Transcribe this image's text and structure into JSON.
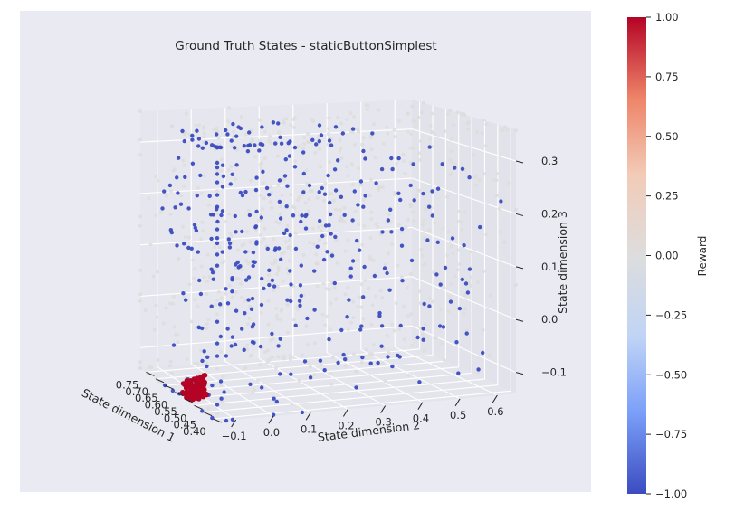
{
  "chart_data": {
    "type": "scatter",
    "projection": "3d",
    "title": "Ground Truth States - staticButtonSimplest",
    "xlabel": "State dimension 1",
    "ylabel": "State dimension 2",
    "zlabel": "State dimension 3",
    "x_ticks": [
      "0.40",
      "0.45",
      "0.50",
      "0.55",
      "0.60",
      "0.65",
      "0.70",
      "0.75"
    ],
    "y_ticks": [
      "−0.1",
      "0.0",
      "0.1",
      "0.2",
      "0.3",
      "0.4",
      "0.5",
      "0.6"
    ],
    "z_ticks": [
      "−0.1",
      "0.0",
      "0.1",
      "0.2",
      "0.3"
    ],
    "xlim": [
      0.38,
      0.78
    ],
    "ylim": [
      -0.15,
      0.65
    ],
    "zlim": [
      -0.14,
      0.36
    ],
    "colorbar": {
      "label": "Reward",
      "ticks": [
        "1.00",
        "0.75",
        "0.50",
        "0.25",
        "0.00",
        "−0.25",
        "−0.50",
        "−0.75",
        "−1.00"
      ],
      "range": [
        -1.0,
        1.0
      ],
      "colormap": "coolwarm",
      "colors": [
        "#3b4cc0",
        "#7b9ff9",
        "#c0d4f5",
        "#dddddd",
        "#f2cbb7",
        "#ee8468",
        "#b40426"
      ]
    },
    "series": [
      {
        "name": "",
        "reward": 0,
        "color": "#dddddd",
        "description": "dense grid of neutral-reward states",
        "points": [
          [
            0.4,
            0.0,
            0.3
          ],
          [
            0.45,
            0.1,
            0.25
          ],
          [
            0.5,
            0.2,
            0.2
          ],
          [
            0.55,
            0.3,
            0.15
          ],
          [
            0.6,
            0.4,
            0.1
          ],
          [
            0.65,
            0.5,
            0.05
          ],
          [
            0.7,
            0.0,
            0.0
          ],
          [
            0.75,
            0.2,
            -0.05
          ],
          [
            0.45,
            0.4,
            0.28
          ],
          [
            0.55,
            0.5,
            0.22
          ],
          [
            0.65,
            0.1,
            0.18
          ],
          [
            0.5,
            0.0,
            0.12
          ]
        ]
      },
      {
        "name": "",
        "reward": -1,
        "color": "#3b4cc0",
        "description": "negative-reward states",
        "points": [
          [
            0.4,
            -0.1,
            0.32
          ],
          [
            0.42,
            -0.1,
            0.25
          ],
          [
            0.44,
            -0.1,
            0.18
          ],
          [
            0.46,
            -0.1,
            0.1
          ],
          [
            0.48,
            -0.1,
            0.02
          ],
          [
            0.5,
            -0.1,
            -0.06
          ],
          [
            0.45,
            0.1,
            0.3
          ],
          [
            0.5,
            0.2,
            0.22
          ],
          [
            0.55,
            0.3,
            0.15
          ],
          [
            0.6,
            0.5,
            0.1
          ],
          [
            0.65,
            0.6,
            0.05
          ],
          [
            0.7,
            0.4,
            -0.02
          ]
        ]
      },
      {
        "name": "",
        "reward": 1,
        "color": "#b40426",
        "description": "positive-reward cluster near the button",
        "points": [
          [
            0.55,
            -0.12,
            -0.13
          ],
          [
            0.56,
            -0.11,
            -0.13
          ],
          [
            0.57,
            -0.1,
            -0.12
          ],
          [
            0.56,
            -0.12,
            -0.12
          ],
          [
            0.55,
            -0.11,
            -0.14
          ],
          [
            0.57,
            -0.12,
            -0.13
          ]
        ]
      }
    ],
    "grid": true,
    "background": "#eaeaf2"
  }
}
